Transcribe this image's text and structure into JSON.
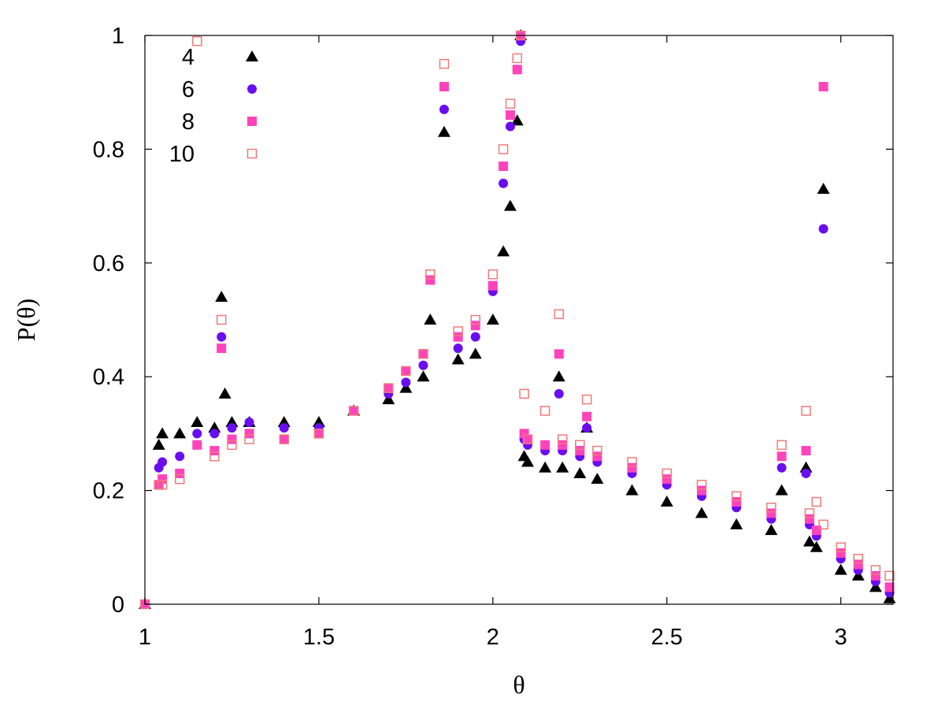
{
  "chart_data": {
    "type": "scatter",
    "xlabel": "θ",
    "ylabel": "P(θ)",
    "xlim": [
      1,
      3.15
    ],
    "ylim": [
      0,
      1
    ],
    "xticks": [
      1,
      1.5,
      2,
      2.5,
      3
    ],
    "xtick_labels": [
      "1",
      "1.5",
      "2",
      "2.5",
      "3"
    ],
    "yticks": [
      0,
      0.2,
      0.4,
      0.6,
      0.8,
      1
    ],
    "ytick_labels": [
      "0",
      "0.2",
      "0.4",
      "0.6",
      "0.8",
      "1"
    ],
    "grid": false,
    "legend_position": "top-left",
    "colors": {
      "series4": "#000000",
      "series6": "#6a0ef0",
      "series8": "#ff44bb",
      "series10": "#f07a7a"
    },
    "series": [
      {
        "name": "4",
        "marker": "filled-triangle",
        "x": [
          1.0,
          1.04,
          1.05,
          1.1,
          1.15,
          1.2,
          1.22,
          1.23,
          1.25,
          1.3,
          1.4,
          1.5,
          1.6,
          1.7,
          1.75,
          1.8,
          1.82,
          1.86,
          1.9,
          1.95,
          2.0,
          2.03,
          2.05,
          2.07,
          2.08,
          2.09,
          2.1,
          2.15,
          2.19,
          2.2,
          2.25,
          2.27,
          2.3,
          2.4,
          2.5,
          2.6,
          2.7,
          2.8,
          2.83,
          2.9,
          2.91,
          2.93,
          2.95,
          3.0,
          3.05,
          3.1,
          3.14
        ],
        "y": [
          0.0,
          0.28,
          0.3,
          0.3,
          0.32,
          0.31,
          0.54,
          0.37,
          0.32,
          0.32,
          0.32,
          0.32,
          0.34,
          0.36,
          0.38,
          0.4,
          0.5,
          0.83,
          0.43,
          0.44,
          0.5,
          0.62,
          0.7,
          0.85,
          1.0,
          0.26,
          0.25,
          0.24,
          0.4,
          0.24,
          0.23,
          0.31,
          0.22,
          0.2,
          0.18,
          0.16,
          0.14,
          0.13,
          0.2,
          0.24,
          0.11,
          0.1,
          0.73,
          0.06,
          0.05,
          0.03,
          0.01
        ]
      },
      {
        "name": "6",
        "marker": "filled-circle",
        "x": [
          1.0,
          1.04,
          1.05,
          1.1,
          1.15,
          1.2,
          1.22,
          1.25,
          1.3,
          1.4,
          1.5,
          1.6,
          1.7,
          1.75,
          1.8,
          1.86,
          1.9,
          1.95,
          2.0,
          2.03,
          2.05,
          2.07,
          2.08,
          2.09,
          2.1,
          2.15,
          2.19,
          2.2,
          2.25,
          2.27,
          2.3,
          2.4,
          2.5,
          2.6,
          2.7,
          2.8,
          2.83,
          2.9,
          2.91,
          2.93,
          2.95,
          3.0,
          3.05,
          3.1,
          3.14
        ],
        "y": [
          0.0,
          0.24,
          0.25,
          0.26,
          0.3,
          0.3,
          0.47,
          0.31,
          0.32,
          0.31,
          0.31,
          0.34,
          0.37,
          0.39,
          0.42,
          0.87,
          0.45,
          0.47,
          0.55,
          0.74,
          0.84,
          0.94,
          0.99,
          0.29,
          0.28,
          0.27,
          0.37,
          0.27,
          0.26,
          0.31,
          0.25,
          0.23,
          0.21,
          0.19,
          0.17,
          0.15,
          0.24,
          0.23,
          0.14,
          0.12,
          0.66,
          0.08,
          0.06,
          0.04,
          0.02
        ]
      },
      {
        "name": "8",
        "marker": "filled-square",
        "x": [
          1.0,
          1.04,
          1.05,
          1.1,
          1.15,
          1.2,
          1.22,
          1.25,
          1.3,
          1.4,
          1.5,
          1.6,
          1.7,
          1.75,
          1.8,
          1.82,
          1.86,
          1.9,
          1.95,
          2.0,
          2.03,
          2.05,
          2.07,
          2.08,
          2.09,
          2.1,
          2.15,
          2.19,
          2.2,
          2.25,
          2.27,
          2.3,
          2.4,
          2.5,
          2.6,
          2.7,
          2.8,
          2.83,
          2.9,
          2.91,
          2.93,
          2.95,
          3.0,
          3.05,
          3.1,
          3.14
        ],
        "y": [
          0.0,
          0.21,
          0.22,
          0.23,
          0.28,
          0.27,
          0.45,
          0.29,
          0.3,
          0.29,
          0.3,
          0.34,
          0.38,
          0.41,
          0.44,
          0.57,
          0.91,
          0.47,
          0.49,
          0.56,
          0.77,
          0.86,
          0.94,
          1.0,
          0.3,
          0.29,
          0.28,
          0.44,
          0.28,
          0.27,
          0.33,
          0.26,
          0.24,
          0.22,
          0.2,
          0.18,
          0.16,
          0.26,
          0.27,
          0.15,
          0.13,
          0.91,
          0.09,
          0.07,
          0.05,
          0.03
        ]
      },
      {
        "name": "10",
        "marker": "open-square",
        "x": [
          1.0,
          1.04,
          1.05,
          1.1,
          1.15,
          1.2,
          1.22,
          1.25,
          1.3,
          1.4,
          1.5,
          1.6,
          1.7,
          1.75,
          1.8,
          1.82,
          1.86,
          1.9,
          1.95,
          2.0,
          2.03,
          2.05,
          2.07,
          2.08,
          2.09,
          2.1,
          2.15,
          2.19,
          2.2,
          2.25,
          2.27,
          2.3,
          2.4,
          2.5,
          2.6,
          2.7,
          2.8,
          2.83,
          2.9,
          2.91,
          2.93,
          2.95,
          3.0,
          3.05,
          3.1,
          3.14
        ],
        "y": [
          0.0,
          0.21,
          0.21,
          0.22,
          0.99,
          0.26,
          0.5,
          0.28,
          0.29,
          0.29,
          0.3,
          0.34,
          0.38,
          0.41,
          0.44,
          0.58,
          0.95,
          0.48,
          0.5,
          0.58,
          0.8,
          0.88,
          0.96,
          1.0,
          0.37,
          0.29,
          0.34,
          0.51,
          0.29,
          0.28,
          0.36,
          0.27,
          0.25,
          0.23,
          0.21,
          0.19,
          0.17,
          0.28,
          0.34,
          0.16,
          0.18,
          0.14,
          0.1,
          0.08,
          0.06,
          0.05
        ]
      }
    ]
  }
}
